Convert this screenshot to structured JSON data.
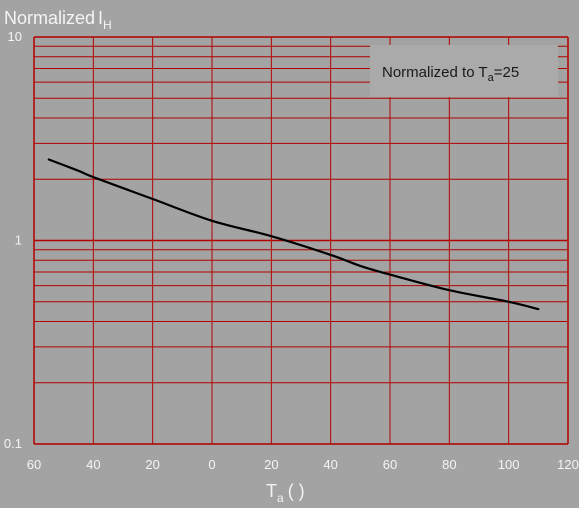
{
  "colors": {
    "background": "#a3a3a3",
    "plot_background": "#a3a3a3",
    "grid": "#b30000",
    "curve": "#000000",
    "text": "#f4f4f4",
    "legend_box": "#aaaaaa",
    "legend_text": "#1a1a1a"
  },
  "chart_data": {
    "type": "line",
    "ylabel": "Normalized",
    "ylabel_var": "I",
    "ylabel_sub": "H",
    "xlabel_var": "T",
    "xlabel_sub": "a",
    "xlabel_unit": "(    )",
    "legend": {
      "prefix": "Normalized to T",
      "sub": "a",
      "suffix": "=25",
      "placement": "top-right"
    },
    "xlim": [
      -60,
      120
    ],
    "ylim": [
      0.1,
      10
    ],
    "y_scale": "log",
    "grid": true,
    "x_ticks": [
      -60,
      -40,
      -20,
      0,
      20,
      40,
      60,
      80,
      100,
      120
    ],
    "x_tick_labels": [
      "60",
      "40",
      "20",
      "0",
      "20",
      "40",
      "60",
      "80",
      "100",
      "120"
    ],
    "y_ticks": [
      0.1,
      1,
      10
    ],
    "y_tick_labels": [
      "0.1",
      "1",
      "10"
    ],
    "series": [
      {
        "x": [
          -55,
          -45,
          -40,
          -20,
          0,
          20,
          40,
          50,
          60,
          80,
          100,
          110
        ],
        "y": [
          2.5,
          2.2,
          2.05,
          1.6,
          1.25,
          1.05,
          0.85,
          0.75,
          0.68,
          0.57,
          0.5,
          0.46
        ]
      }
    ]
  }
}
